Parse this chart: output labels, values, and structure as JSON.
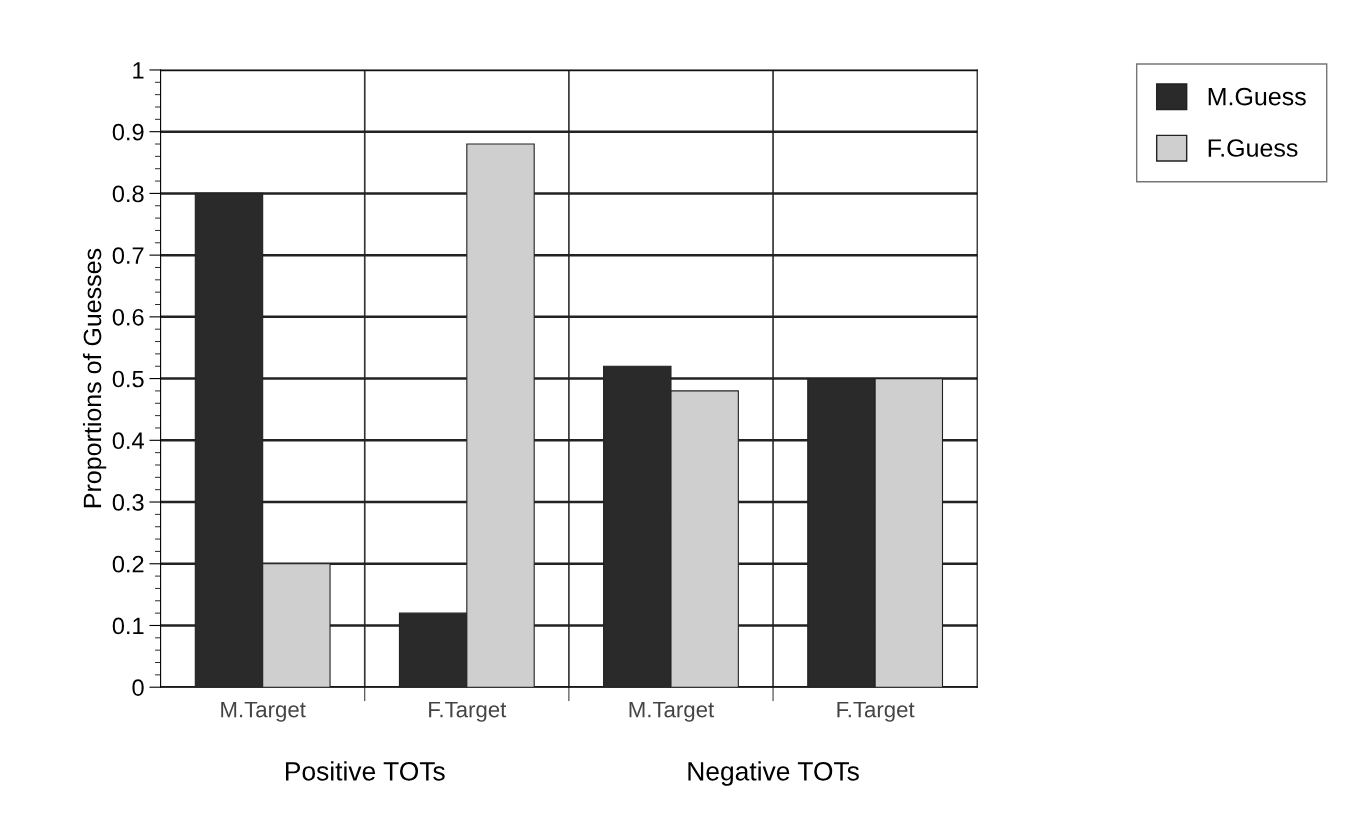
{
  "chart_data": {
    "type": "bar",
    "ylabel": "Proportions of Guesses",
    "categories": [
      "M.Target",
      "F.Target",
      "M.Target",
      "F.Target"
    ],
    "series": [
      {
        "name": "M.Guess",
        "color": "#2a2a2a",
        "values": [
          0.8,
          0.12,
          0.52,
          0.5
        ]
      },
      {
        "name": "F.Guess",
        "color": "#cfcfcf",
        "values": [
          0.2,
          0.88,
          0.48,
          0.5
        ]
      }
    ],
    "annotations": [
      "Positive TOTs",
      "Negative TOTs"
    ],
    "ylim": [
      0,
      1
    ],
    "yticks": [
      0,
      0.1,
      0.2,
      0.3,
      0.4,
      0.5,
      0.6,
      0.7,
      0.8,
      0.9,
      1
    ],
    "grid": true,
    "legend": "top right"
  }
}
